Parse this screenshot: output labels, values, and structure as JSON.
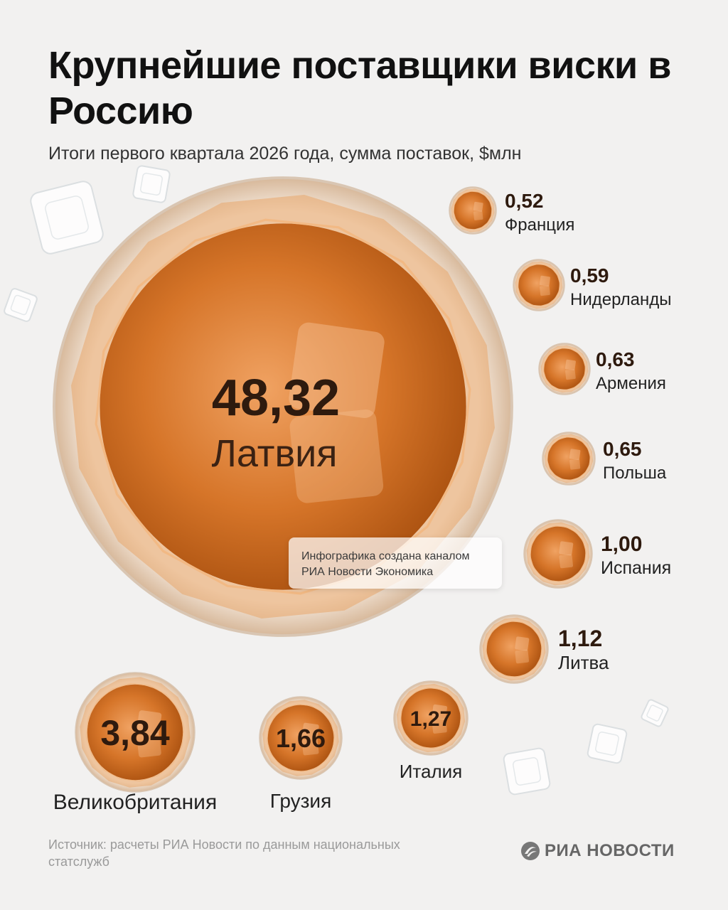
{
  "header": {
    "title": "Крупнейшие поставщики виски в Россию",
    "subtitle": "Итоги первого квартала 2026 года, сумма поставок, $млн"
  },
  "credit": {
    "line1": "Инфографика создана каналом",
    "line2": "РИА Новости Экономика"
  },
  "footer": {
    "source": "Источник: расчеты РИА Новости по данным национальных статслужб",
    "logo_text": "РИА НОВОСТИ"
  },
  "colors": {
    "whisky": "#c8651f",
    "whisky_light": "#e89a55",
    "rim": "#d9c6b3",
    "label_dark": "#2e1a0e"
  },
  "chart_data": {
    "type": "bubble",
    "title": "Крупнейшие поставщики виски в Россию",
    "subtitle": "Итоги первого квартала 2026 года, сумма поставок, $млн",
    "unit": "$млн",
    "categories": [
      "Латвия",
      "Великобритания",
      "Грузия",
      "Италия",
      "Литва",
      "Испания",
      "Польша",
      "Армения",
      "Нидерланды",
      "Франция"
    ],
    "values": [
      48.32,
      3.84,
      1.66,
      1.27,
      1.12,
      1.0,
      0.65,
      0.63,
      0.59,
      0.52
    ],
    "value_labels": [
      "48,32",
      "3,84",
      "1,66",
      "1,27",
      "1,12",
      "1,00",
      "0,65",
      "0,63",
      "0,59",
      "0,52"
    ]
  }
}
